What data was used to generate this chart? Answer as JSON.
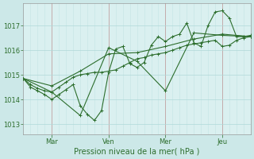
{
  "bg_color": "#cce8e8",
  "plot_bg_color": "#daf0f0",
  "grid_color_major": "#b0d8d8",
  "grid_color_minor": "#c4e4e4",
  "line_color": "#2d6e2d",
  "vline_color": "#c0a0a0",
  "xlabel": "Pression niveau de la mer( hPa )",
  "xlabel_color": "#2d6e2d",
  "tick_color": "#2d6e2d",
  "ylim": [
    1012.6,
    1017.9
  ],
  "yticks": [
    1013,
    1014,
    1015,
    1016,
    1017
  ],
  "xtick_labels": [
    "Mar",
    "Ven",
    "Mer",
    "Jeu"
  ],
  "xtick_positions": [
    24,
    72,
    120,
    168
  ],
  "vline_positions": [
    24,
    72,
    120,
    168
  ],
  "xlim": [
    0,
    192
  ],
  "series1_x": [
    0,
    6,
    12,
    18,
    24,
    30,
    36,
    42,
    48,
    54,
    60,
    66,
    72,
    78,
    84,
    90,
    96,
    102,
    108,
    114,
    120,
    126,
    132,
    138,
    144,
    150,
    156,
    162,
    168,
    174,
    180,
    186,
    192
  ],
  "series1_y": [
    1014.85,
    1014.5,
    1014.35,
    1014.2,
    1014.0,
    1014.2,
    1014.4,
    1014.6,
    1013.75,
    1013.4,
    1013.15,
    1013.55,
    1015.1,
    1016.05,
    1016.15,
    1015.45,
    1015.3,
    1015.5,
    1016.2,
    1016.55,
    1016.35,
    1016.55,
    1016.65,
    1017.1,
    1016.3,
    1016.15,
    1017.0,
    1017.55,
    1017.6,
    1017.3,
    1016.55,
    1016.55,
    1016.6
  ],
  "series2_x": [
    0,
    6,
    12,
    18,
    24,
    30,
    36,
    42,
    48,
    54,
    60,
    66,
    72,
    78,
    84,
    90,
    96,
    102,
    108,
    114,
    120,
    126,
    132,
    138,
    144,
    150,
    156,
    162,
    168,
    174,
    180,
    186,
    192
  ],
  "series2_y": [
    1014.85,
    1014.6,
    1014.45,
    1014.35,
    1014.3,
    1014.5,
    1014.7,
    1014.9,
    1015.0,
    1015.05,
    1015.1,
    1015.1,
    1015.15,
    1015.2,
    1015.35,
    1015.5,
    1015.65,
    1015.7,
    1015.8,
    1015.85,
    1015.9,
    1016.0,
    1016.1,
    1016.2,
    1016.25,
    1016.3,
    1016.35,
    1016.4,
    1016.15,
    1016.2,
    1016.4,
    1016.5,
    1016.55
  ],
  "series3_x": [
    0,
    24,
    48,
    72,
    96,
    120,
    144,
    168,
    192
  ],
  "series3_y": [
    1014.85,
    1014.3,
    1013.35,
    1016.1,
    1015.55,
    1014.35,
    1016.7,
    1016.6,
    1016.55
  ],
  "series4_x": [
    0,
    24,
    48,
    72,
    96,
    120,
    144,
    168,
    192
  ],
  "series4_y": [
    1014.85,
    1014.55,
    1015.15,
    1015.85,
    1015.9,
    1016.15,
    1016.45,
    1016.65,
    1016.55
  ]
}
